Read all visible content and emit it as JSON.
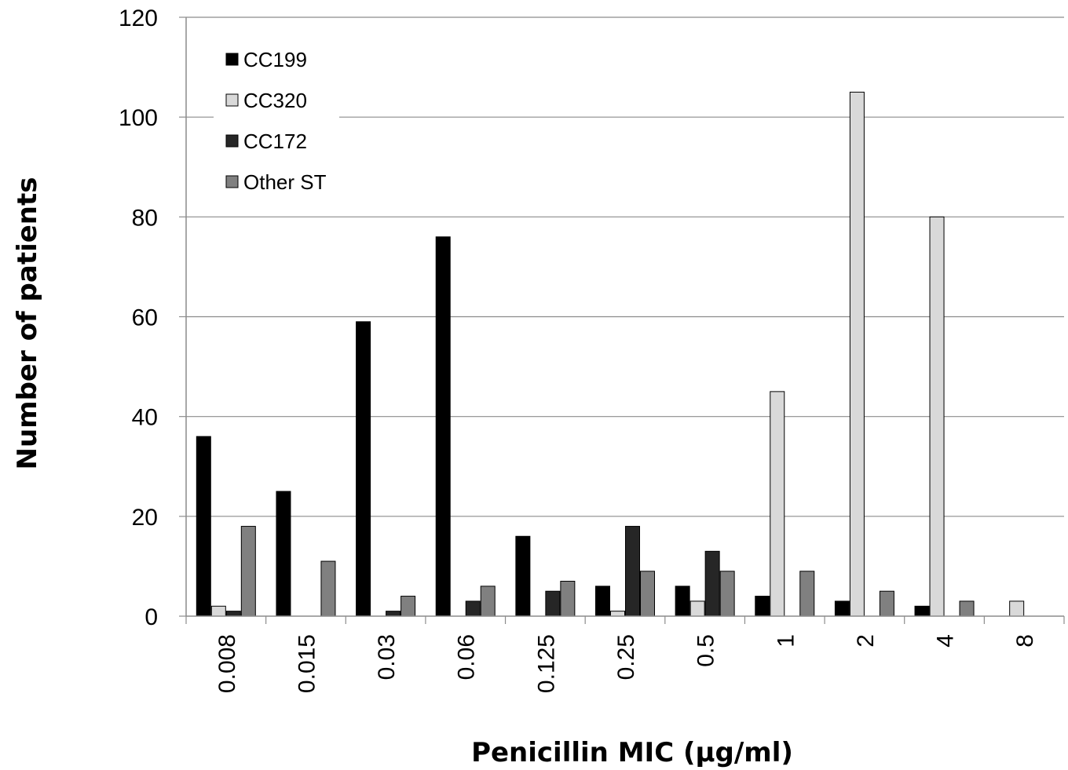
{
  "chart_data": {
    "type": "bar",
    "xlabel": "Penicillin MIC (µg/ml)",
    "ylabel": "Number of patients",
    "ylim": [
      0,
      120
    ],
    "yticks": [
      0,
      20,
      40,
      60,
      80,
      100,
      120
    ],
    "grid": true,
    "legend_position": "top-left",
    "categories": [
      "0.008",
      "0.015",
      "0.03",
      "0.06",
      "0.125",
      "0.25",
      "0.5",
      "1",
      "2",
      "4",
      "8"
    ],
    "series": [
      {
        "name": "CC199",
        "color": "#000000",
        "values": [
          36,
          25,
          59,
          76,
          16,
          6,
          6,
          4,
          3,
          2,
          0
        ]
      },
      {
        "name": "CC320",
        "color": "#d9d9d9",
        "values": [
          2,
          0,
          0,
          0,
          0,
          1,
          3,
          45,
          105,
          80,
          3
        ]
      },
      {
        "name": "CC172",
        "color": "#262626",
        "values": [
          1,
          0,
          1,
          3,
          5,
          18,
          13,
          0,
          0,
          0,
          0
        ]
      },
      {
        "name": "Other ST",
        "color": "#808080",
        "values": [
          18,
          11,
          4,
          6,
          7,
          9,
          9,
          9,
          5,
          3,
          0
        ]
      }
    ]
  }
}
